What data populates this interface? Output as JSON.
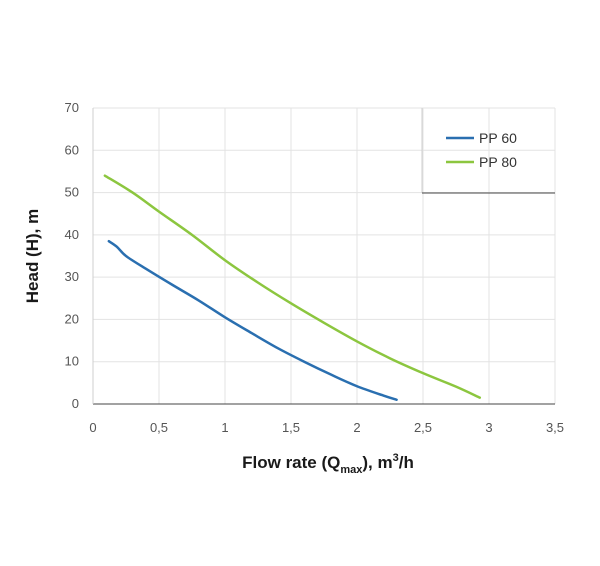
{
  "chart_data": {
    "type": "line",
    "title": "",
    "xlabel": {
      "main": "Flow rate (Q",
      "sub": "max",
      "tail": "), m",
      "sup": "3",
      "end": "/h"
    },
    "ylabel": "Head (H), m",
    "xlim": [
      0,
      3.5
    ],
    "ylim": [
      0,
      70
    ],
    "xticks": [
      "0",
      "0,5",
      "1",
      "1,5",
      "2",
      "2,5",
      "3",
      "3,5"
    ],
    "xtick_values": [
      0,
      0.5,
      1,
      1.5,
      2,
      2.5,
      3,
      3.5
    ],
    "yticks": [
      "0",
      "10",
      "20",
      "30",
      "40",
      "50",
      "60",
      "70"
    ],
    "ytick_values": [
      0,
      10,
      20,
      30,
      40,
      50,
      60,
      70
    ],
    "grid": true,
    "legend_position": "top-right",
    "series": [
      {
        "name": "PP 60",
        "color": "#2a6fb0",
        "x": [
          0.12,
          0.18,
          0.25,
          0.4,
          0.6,
          0.8,
          1.0,
          1.2,
          1.4,
          1.6,
          1.8,
          2.0,
          2.2,
          2.3
        ],
        "y": [
          38.5,
          37.2,
          35.0,
          32.0,
          28.2,
          24.5,
          20.5,
          16.8,
          13.2,
          10.0,
          7.0,
          4.2,
          2.0,
          1.0
        ]
      },
      {
        "name": "PP 80",
        "color": "#8cc63f",
        "x": [
          0.09,
          0.3,
          0.5,
          0.75,
          1.0,
          1.25,
          1.5,
          1.75,
          2.0,
          2.25,
          2.5,
          2.75,
          2.93
        ],
        "y": [
          54.0,
          50.0,
          45.5,
          40.0,
          34.0,
          28.7,
          23.8,
          19.2,
          14.8,
          10.8,
          7.3,
          4.1,
          1.5
        ]
      }
    ]
  }
}
